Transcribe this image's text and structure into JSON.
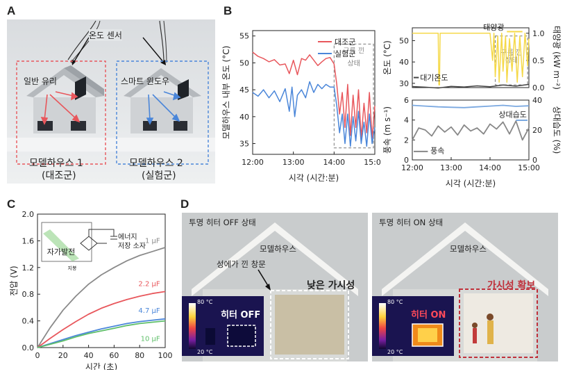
{
  "panel_labels": [
    "A",
    "B",
    "C",
    "D"
  ],
  "panelA": {
    "sensor_label": "온도 센서",
    "left_label": "일반 유리",
    "right_label": "스마트 윈도우",
    "house1_name": "모델하우스 1",
    "house1_sub": "(대조군)",
    "house2_name": "모델하우스 2",
    "house2_sub": "(실험군)",
    "colors": {
      "control": "#e8575c",
      "experiment": "#4a86d9"
    }
  },
  "panelD": {
    "left_title": "투명 히터 OFF 상태",
    "right_title": "투명 히터 ON 상태",
    "house_label_left": "모델하우스",
    "house_label_right": "모델하우스",
    "frost_label": "성에가 낀 창문",
    "low_vis": "낮은 가시성",
    "vis_ok": "가시성 확보",
    "heater_off": "히터 OFF",
    "heater_on": "히터 ON",
    "scale_top": "80 °C",
    "scale_bottom": "20 °C"
  },
  "chart_data": [
    {
      "id": "B-left",
      "type": "line",
      "xlabel": "시각 (시간:분)",
      "ylabel": "모델하우스 내부 온도 (°C)",
      "xticks": [
        "12:00",
        "13:00",
        "14:00",
        "15:00"
      ],
      "xlim": [
        0,
        180
      ],
      "ylim": [
        33,
        56
      ],
      "yticks": [
        35,
        40,
        45,
        50,
        55
      ],
      "legend": "top-right",
      "annotation": "구름 낀 상태",
      "series": [
        {
          "name": "대조군",
          "color": "#e8575c",
          "x": [
            0,
            8,
            16,
            24,
            32,
            40,
            48,
            54,
            60,
            66,
            72,
            78,
            84,
            90,
            96,
            102,
            108,
            114,
            120,
            124,
            128,
            132,
            136,
            140,
            144,
            148,
            152,
            156,
            160,
            164,
            168,
            172,
            176,
            180
          ],
          "y": [
            52,
            51.2,
            50.8,
            50.2,
            50.6,
            49.6,
            49.8,
            48,
            50.5,
            47.8,
            50.8,
            50.5,
            51.5,
            50.5,
            49.5,
            50.2,
            50.8,
            51,
            49.8,
            46,
            40.5,
            44.5,
            38,
            46,
            36.5,
            44,
            38,
            45,
            36,
            42.5,
            37,
            44.5,
            36,
            42
          ]
        },
        {
          "name": "실험군",
          "color": "#4a86d9",
          "x": [
            0,
            8,
            16,
            24,
            32,
            40,
            48,
            54,
            58,
            62,
            66,
            72,
            78,
            84,
            90,
            96,
            102,
            108,
            114,
            120,
            124,
            128,
            132,
            136,
            140,
            144,
            148,
            152,
            156,
            160,
            164,
            168,
            172,
            176,
            180
          ],
          "y": [
            44.5,
            43.8,
            45,
            43.5,
            44.8,
            42.8,
            45.2,
            41,
            45.5,
            40,
            44,
            45,
            43.5,
            46.5,
            44.5,
            46,
            45.2,
            46,
            45.5,
            45.5,
            42,
            37,
            40.5,
            35,
            40.5,
            34.5,
            40,
            35.5,
            41,
            35,
            39,
            34.5,
            40.5,
            35,
            38
          ]
        }
      ]
    },
    {
      "id": "B-right-top",
      "type": "line",
      "ylabel_left": "온도 (°C)",
      "ylabel_right": "태양광 (kW m⁻²)",
      "xlim": [
        0,
        180
      ],
      "ylim": [
        28,
        56
      ],
      "yticks": [
        30,
        40,
        50
      ],
      "ylim_right": [
        0,
        1.1
      ],
      "yticks_right": [
        "0.0",
        "0.5",
        "1.0"
      ],
      "annotation": "구름 낀 상태",
      "series": [
        {
          "name": "태양광",
          "axis": "right",
          "color": "#f5d94a",
          "x": [
            0,
            20,
            40,
            41,
            42,
            43,
            44,
            60,
            80,
            100,
            120,
            124,
            126,
            128,
            132,
            134,
            138,
            140,
            144,
            146,
            150,
            154,
            158,
            162,
            166,
            170,
            174,
            178,
            180
          ],
          "y": [
            1.0,
            1.0,
            1.0,
            0.05,
            0.05,
            1.0,
            1.0,
            1.0,
            1.0,
            1.0,
            1.0,
            0.5,
            1.0,
            0.2,
            0.95,
            0.1,
            1.0,
            0.3,
            0.95,
            0.1,
            0.9,
            0.3,
            1.0,
            0.1,
            0.95,
            0.2,
            1.0,
            0.4,
            0.9
          ]
        },
        {
          "name": "대기온도",
          "axis": "left",
          "color": "#444444",
          "x": [
            0,
            20,
            40,
            60,
            80,
            100,
            120,
            140,
            160,
            180
          ],
          "y": [
            28.5,
            28.2,
            27.8,
            28.6,
            28.3,
            28.8,
            28.4,
            29.2,
            28.7,
            29.5
          ]
        }
      ]
    },
    {
      "id": "B-right-bottom",
      "type": "line",
      "xlabel": "시각 (시간:분)",
      "xticks": [
        "12:00",
        "13:00",
        "14:00",
        "15:00"
      ],
      "ylabel_left": "풍속 (m s⁻¹)",
      "ylabel_right": "상대습도 (%)",
      "xlim": [
        0,
        180
      ],
      "ylim": [
        0,
        6
      ],
      "yticks": [
        0,
        2,
        4,
        6
      ],
      "ylim_right": [
        0,
        40
      ],
      "yticks_right": [
        0,
        20,
        40
      ],
      "series": [
        {
          "name": "상대습도",
          "axis": "right",
          "color": "#7aa8e0",
          "x": [
            0,
            20,
            40,
            60,
            80,
            100,
            120,
            140,
            160,
            180
          ],
          "y": [
            36.5,
            36,
            35.5,
            35.2,
            35,
            35.5,
            36,
            36.5,
            35.8,
            36.2
          ]
        },
        {
          "name": "풍속",
          "axis": "left",
          "color": "#888888",
          "x": [
            0,
            10,
            20,
            30,
            40,
            50,
            60,
            70,
            80,
            90,
            100,
            110,
            120,
            130,
            140,
            150,
            160,
            170,
            180
          ],
          "y": [
            2.0,
            3.2,
            3.0,
            2.4,
            3.4,
            2.8,
            3.3,
            2.5,
            3.5,
            2.9,
            3.2,
            2.6,
            3.6,
            3.1,
            3.8,
            2.6,
            3.9,
            2.0,
            3.2
          ]
        }
      ]
    },
    {
      "id": "C",
      "type": "line",
      "xlabel": "시간 (초)",
      "ylabel": "전압 (V)",
      "xlim": [
        0,
        100
      ],
      "ylim": [
        0,
        2.0
      ],
      "xticks": [
        0,
        20,
        40,
        60,
        80,
        100
      ],
      "yticks": [
        "0.0",
        "0.4",
        "0.8",
        "1.2",
        "1.6",
        "2.0"
      ],
      "inset": {
        "label1": "에너지",
        "label2": "저장 소자",
        "label3": "자가발전",
        "label4": "지붕"
      },
      "series": [
        {
          "name": "1 μF",
          "color": "#8a8a8a",
          "x": [
            0,
            10,
            20,
            30,
            40,
            50,
            60,
            70,
            80,
            90,
            100
          ],
          "y": [
            0,
            0.3,
            0.56,
            0.77,
            0.95,
            1.09,
            1.2,
            1.3,
            1.38,
            1.44,
            1.5
          ]
        },
        {
          "name": "2.2 μF",
          "color": "#e8575c",
          "x": [
            0,
            10,
            20,
            30,
            40,
            50,
            60,
            70,
            80,
            90,
            100
          ],
          "y": [
            0,
            0.14,
            0.27,
            0.39,
            0.5,
            0.59,
            0.66,
            0.72,
            0.77,
            0.81,
            0.84
          ]
        },
        {
          "name": "4.7 μF",
          "color": "#4a86d9",
          "x": [
            0,
            10,
            20,
            30,
            40,
            50,
            60,
            70,
            80,
            90,
            100
          ],
          "y": [
            0,
            0.06,
            0.12,
            0.18,
            0.23,
            0.28,
            0.32,
            0.36,
            0.39,
            0.41,
            0.43
          ]
        },
        {
          "name": "10 μF",
          "color": "#5fbf6a",
          "x": [
            0,
            10,
            20,
            30,
            40,
            50,
            60,
            70,
            80,
            90,
            100
          ],
          "y": [
            0,
            0.05,
            0.1,
            0.16,
            0.21,
            0.25,
            0.29,
            0.33,
            0.36,
            0.38,
            0.4
          ]
        }
      ]
    }
  ]
}
